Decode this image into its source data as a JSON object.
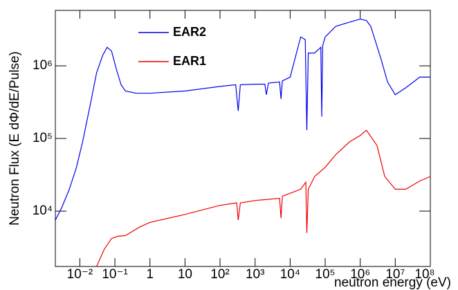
{
  "chart_data": {
    "type": "line",
    "x_label": "neutron energy (eV)",
    "y_label": "Neutron Flux (E dΦ/dE/Pulse)",
    "xlog": true,
    "ylog": true,
    "legend": "top",
    "xlim": [
      0.002,
      100000000
    ],
    "ylim": [
      1730,
      5800000
    ],
    "xticks": [
      {
        "value": 0.01,
        "label": "10⁻²"
      },
      {
        "value": 0.1,
        "label": "10⁻¹"
      },
      1,
      10,
      {
        "value": 100,
        "label": "10²"
      },
      {
        "value": 1000,
        "label": "10³"
      },
      {
        "value": 10000,
        "label": "10⁴"
      },
      {
        "value": 100000,
        "label": "10⁵"
      },
      {
        "value": 1000000,
        "label": "10⁶"
      },
      {
        "value": 10000000,
        "label": "10⁷"
      },
      {
        "value": 100000000,
        "label": "10⁸"
      }
    ],
    "yticks": [
      {
        "value": 10000,
        "label": "10⁴"
      },
      {
        "value": 100000,
        "label": "10⁵"
      },
      {
        "value": 1000000,
        "label": "10⁶"
      }
    ],
    "series": [
      {
        "name": "EAR2",
        "color": "#0000ee",
        "x": [
          0.002,
          0.003,
          0.005,
          0.008,
          0.012,
          0.02,
          0.03,
          0.045,
          0.06,
          0.08,
          0.11,
          0.15,
          0.2,
          0.4,
          1,
          10,
          100,
          280,
          330,
          380,
          1000,
          1900,
          2100,
          2400,
          5000,
          5500,
          6000,
          10000,
          20000,
          27000,
          30000,
          33000,
          50000,
          75000,
          80000,
          85000,
          100000,
          200000,
          500000,
          1000000,
          1500000,
          2000000,
          4000000,
          6000000,
          10000000,
          20000000,
          50000000,
          100000000
        ],
        "values": [
          7500,
          11000,
          20000,
          40000,
          90000,
          300000,
          800000,
          1400000,
          1800000,
          1600000,
          900000,
          550000,
          450000,
          420000,
          420000,
          450000,
          520000,
          550000,
          240000,
          550000,
          560000,
          560000,
          400000,
          580000,
          600000,
          350000,
          620000,
          700000,
          2500000,
          2300000,
          130000,
          1500000,
          1500000,
          1800000,
          200000,
          1900000,
          2500000,
          3500000,
          4000000,
          4400000,
          4200000,
          3500000,
          1200000,
          600000,
          400000,
          500000,
          700000,
          700000
        ]
      },
      {
        "name": "EAR1",
        "color": "#ee0000",
        "x": [
          0.03,
          0.05,
          0.08,
          0.12,
          0.2,
          0.5,
          1,
          10,
          100,
          300,
          330,
          380,
          1000,
          5000,
          5500,
          6000,
          20000,
          28000,
          30000,
          33000,
          50000,
          100000,
          200000,
          500000,
          1000000,
          1500000,
          3000000,
          5000000,
          10000000,
          20000000,
          50000000,
          100000000
        ],
        "values": [
          1730,
          3000,
          4200,
          4500,
          4600,
          6000,
          7000,
          9000,
          12000,
          13000,
          7500,
          13000,
          14000,
          15000,
          8000,
          16000,
          20000,
          25000,
          5000,
          20000,
          30000,
          40000,
          60000,
          90000,
          110000,
          130000,
          80000,
          30000,
          20000,
          20000,
          26000,
          30000
        ]
      }
    ]
  }
}
